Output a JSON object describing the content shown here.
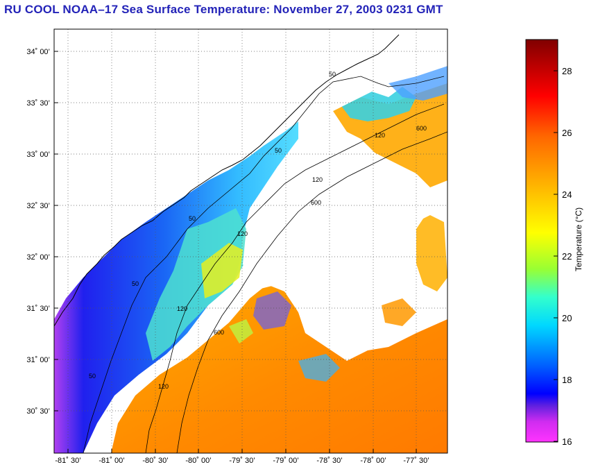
{
  "title": "RU COOL  NOAA–17  Sea Surface Temperature:  November 27, 2003 0231 GMT",
  "map": {
    "lat_ticks": [
      "34˚ 00’",
      "33˚ 30’",
      "33˚ 00’",
      "32˚ 30’",
      "32˚ 00’",
      "31˚ 30’",
      "31˚ 00’",
      "30˚ 30’"
    ],
    "lon_ticks": [
      "-81˚ 30’",
      "-81˚ 00’",
      "-80˚ 30’",
      "-80˚ 00’",
      "-79˚ 30’",
      "-79˚ 00’",
      "-78˚ 30’",
      "-78˚ 00’",
      "-77˚ 30’"
    ],
    "contour_labels": [
      "50",
      "120",
      "600"
    ]
  },
  "colorbar": {
    "title": "Temperature (°C)",
    "min": 16,
    "max": 29,
    "ticks": [
      "16",
      "18",
      "20",
      "22",
      "24",
      "26",
      "28"
    ]
  },
  "colors": {
    "title": "#2323b8",
    "gridline": "#555555"
  }
}
